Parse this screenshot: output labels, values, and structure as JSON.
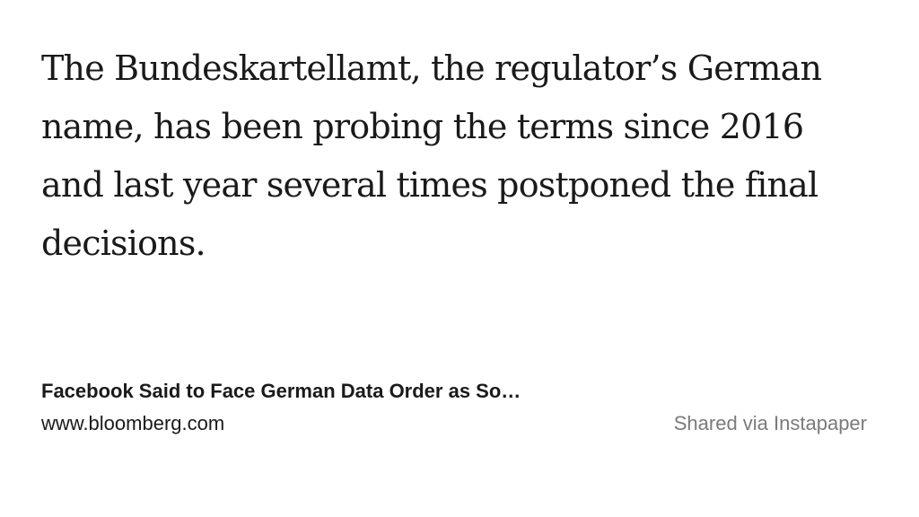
{
  "quote": {
    "lines": [
      "The Bundeskartellamt, the regulator’s German",
      "name, has been probing the terms since 2016",
      "and last year several times postponed the final",
      "decisions."
    ]
  },
  "source": {
    "title": "Facebook Said to Face German Data Order as So…",
    "domain": "www.bloomberg.com",
    "shared_via": "Shared via Instapaper"
  }
}
